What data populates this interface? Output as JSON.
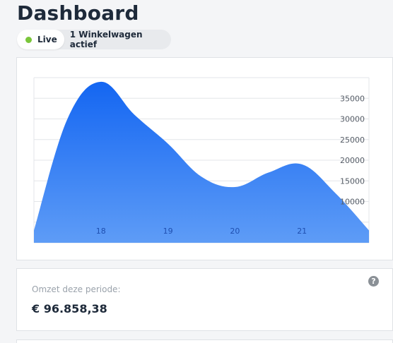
{
  "header": {
    "title": "Dashboard"
  },
  "status": {
    "live_label": "Live",
    "cart_text": "1 Winkelwagen actief",
    "live_color": "#7ac63a"
  },
  "chart_data": {
    "type": "area",
    "x": [
      17.0,
      17.5,
      18.0,
      18.5,
      19.0,
      19.5,
      20.0,
      20.5,
      21.0,
      21.5,
      22.0
    ],
    "values": [
      3000,
      30000,
      39000,
      31000,
      24000,
      16000,
      13500,
      17000,
      19000,
      12000,
      3000
    ],
    "x_ticks": [
      "18",
      "19",
      "20",
      "21"
    ],
    "y_ticks": [
      "10000",
      "15000",
      "20000",
      "25000",
      "30000",
      "35000"
    ],
    "ylim": [
      0,
      40000
    ],
    "grid": true,
    "fill_color_top": "#1466f2",
    "fill_color_bottom": "#5e9cf6"
  },
  "revenue": {
    "label": "Omzet deze periode:",
    "value": "€ 96.858,38",
    "help_icon": "question-circle-icon"
  }
}
